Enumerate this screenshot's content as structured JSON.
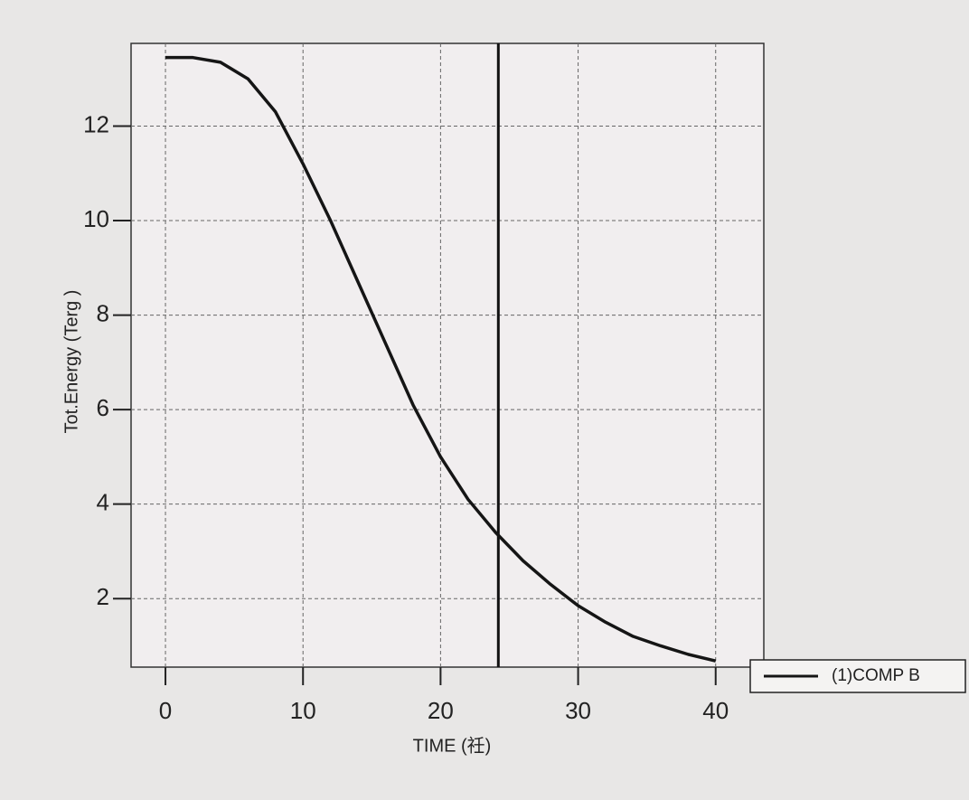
{
  "chart_data": {
    "type": "line",
    "x": [
      0,
      2,
      4,
      6,
      8,
      10,
      12,
      14,
      16,
      18,
      20,
      22,
      24,
      26,
      28,
      30,
      32,
      34,
      36,
      38,
      40
    ],
    "series": [
      {
        "name": "(1)COMP B",
        "color": "#151515",
        "values": [
          13.45,
          13.45,
          13.35,
          13.0,
          12.3,
          11.2,
          10.0,
          8.7,
          7.4,
          6.1,
          5.0,
          4.1,
          3.4,
          2.8,
          2.3,
          1.85,
          1.5,
          1.2,
          1.0,
          0.82,
          0.68
        ]
      }
    ],
    "xlabel": "TIME (祍)",
    "ylabel": "Tot.Energy (Terg )",
    "xlim": [
      -2.5,
      43.5
    ],
    "ylim": [
      0.55,
      13.75
    ],
    "xticks": [
      0,
      10,
      20,
      30,
      40
    ],
    "yticks": [
      2,
      4,
      6,
      8,
      10,
      12
    ],
    "marker_x": 24.2,
    "grid": true,
    "legend": "lower right outside"
  }
}
